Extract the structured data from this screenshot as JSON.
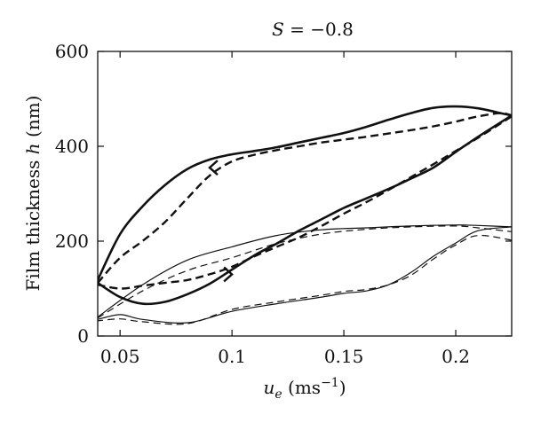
{
  "chart_data": {
    "type": "line",
    "title": "S = −0.8",
    "title_parts": {
      "var": "S",
      "rest": " = −0.8"
    },
    "xlabel": "u_e (ms⁻¹)",
    "xlabel_parts": {
      "var": "u",
      "sub": "e",
      "rest": " (ms",
      "sup": "−1",
      "close": ")"
    },
    "ylabel": "Film thickness h (nm)",
    "ylabel_parts": {
      "pre": "Film thickness ",
      "var": "h",
      "rest": " (nm)"
    },
    "xlim": [
      0.04,
      0.225
    ],
    "ylim": [
      0,
      600
    ],
    "xticks": [
      0.05,
      0.1,
      0.15,
      0.2
    ],
    "xtick_labels": [
      "0.05",
      "0.1",
      "0.15",
      "0.2"
    ],
    "yticks": [
      0,
      200,
      400,
      600
    ],
    "ytick_labels": [
      "0",
      "200",
      "400",
      "600"
    ],
    "grid": false,
    "legend": false,
    "series": [
      {
        "style": "solid-thick",
        "x": [
          0.04,
          0.05,
          0.06,
          0.07,
          0.08,
          0.09,
          0.1,
          0.11,
          0.12,
          0.13,
          0.14,
          0.15,
          0.16,
          0.17,
          0.18,
          0.19,
          0.2,
          0.21,
          0.22,
          0.225
        ],
        "y": [
          118,
          215,
          273,
          318,
          352,
          372,
          383,
          390,
          398,
          408,
          418,
          428,
          441,
          456,
          470,
          481,
          484,
          480,
          470,
          465
        ]
      },
      {
        "style": "solid-thick",
        "x": [
          0.225,
          0.21,
          0.2,
          0.19,
          0.18,
          0.17,
          0.16,
          0.15,
          0.14,
          0.13,
          0.12,
          0.11,
          0.1,
          0.09,
          0.08,
          0.07,
          0.06,
          0.05,
          0.04
        ],
        "y": [
          465,
          420,
          388,
          355,
          332,
          310,
          290,
          270,
          246,
          222,
          195,
          170,
          140,
          110,
          88,
          72,
          68,
          82,
          112
        ]
      },
      {
        "style": "dash-thick",
        "x": [
          0.04,
          0.05,
          0.06,
          0.07,
          0.08,
          0.09,
          0.1,
          0.11,
          0.12,
          0.13,
          0.14,
          0.15,
          0.16,
          0.17,
          0.18,
          0.19,
          0.2,
          0.21,
          0.22,
          0.225
        ],
        "y": [
          112,
          165,
          200,
          240,
          290,
          338,
          368,
          382,
          392,
          400,
          408,
          414,
          420,
          427,
          434,
          442,
          452,
          463,
          470,
          465
        ]
      },
      {
        "style": "dash-thick",
        "x": [
          0.225,
          0.21,
          0.2,
          0.19,
          0.18,
          0.17,
          0.16,
          0.15,
          0.14,
          0.13,
          0.12,
          0.11,
          0.1,
          0.09,
          0.08,
          0.07,
          0.06,
          0.05,
          0.04
        ],
        "y": [
          463,
          418,
          390,
          362,
          335,
          308,
          282,
          258,
          232,
          208,
          188,
          168,
          146,
          130,
          118,
          112,
          106,
          100,
          108
        ]
      },
      {
        "style": "solid-thin",
        "x": [
          0.04,
          0.06,
          0.08,
          0.1,
          0.12,
          0.14,
          0.16,
          0.18,
          0.2,
          0.21,
          0.225
        ],
        "y": [
          40,
          108,
          160,
          188,
          212,
          224,
          228,
          232,
          234,
          233,
          230
        ]
      },
      {
        "style": "solid-thin",
        "x": [
          0.225,
          0.21,
          0.2,
          0.19,
          0.18,
          0.17,
          0.16,
          0.15,
          0.14,
          0.12,
          0.1,
          0.08,
          0.06,
          0.05,
          0.04
        ],
        "y": [
          230,
          222,
          196,
          168,
          134,
          108,
          95,
          90,
          82,
          68,
          52,
          28,
          35,
          45,
          35
        ]
      },
      {
        "style": "dash-thin",
        "x": [
          0.04,
          0.06,
          0.08,
          0.1,
          0.12,
          0.14,
          0.16,
          0.18,
          0.2,
          0.21,
          0.225
        ],
        "y": [
          38,
          95,
          138,
          165,
          195,
          215,
          225,
          230,
          232,
          228,
          220
        ]
      },
      {
        "style": "dash-thin",
        "x": [
          0.225,
          0.21,
          0.2,
          0.19,
          0.18,
          0.17,
          0.16,
          0.15,
          0.14,
          0.12,
          0.1,
          0.08,
          0.06,
          0.05,
          0.04
        ],
        "y": [
          202,
          212,
          192,
          162,
          128,
          108,
          98,
          94,
          86,
          72,
          56,
          26,
          30,
          36,
          32
        ]
      }
    ],
    "arrows": [
      {
        "x": 0.09,
        "y": 355,
        "direction": "left"
      },
      {
        "x": 0.1,
        "y": 130,
        "direction": "right"
      }
    ]
  }
}
